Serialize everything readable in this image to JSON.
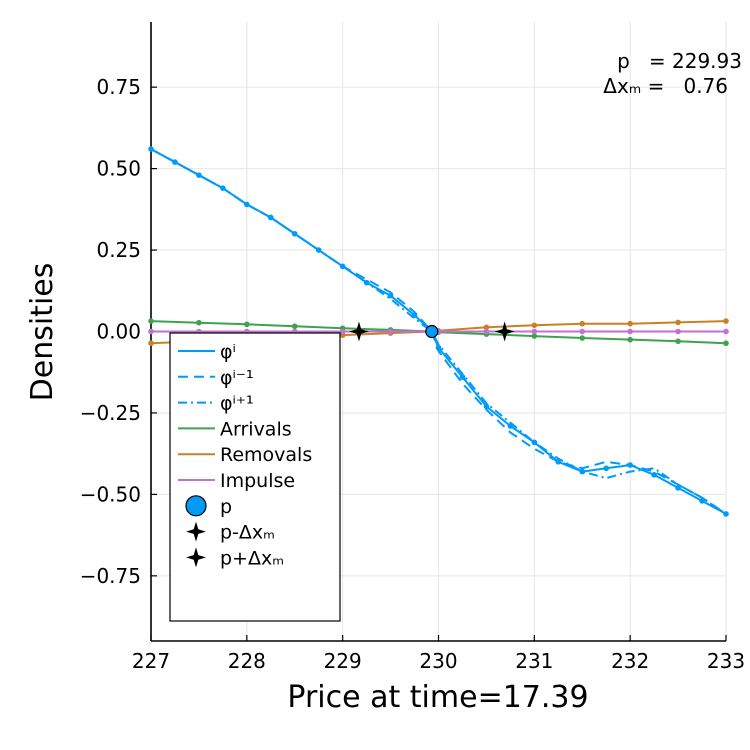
{
  "chart_data": {
    "type": "line",
    "xlabel": "Price at time=17.39",
    "ylabel": "Densities",
    "xlim": [
      227,
      233
    ],
    "ylim": [
      -0.95,
      0.95
    ],
    "xticks": [
      227,
      228,
      229,
      230,
      231,
      232,
      233
    ],
    "yticks": [
      0.75,
      0.5,
      0.25,
      0.0,
      -0.25,
      -0.5,
      -0.75
    ],
    "ytick_labels": [
      "0.75",
      "0.50",
      "0.25",
      "0.00",
      "−0.25",
      "−0.50",
      "−0.75"
    ],
    "grid": true,
    "legend_position": "bottom-left",
    "annotation": {
      "line1": "p   = 229.93",
      "line2": "Δxₘ =   0.76"
    },
    "colors": {
      "phi": "#009af9",
      "arrivals": "#3da44d",
      "removals": "#c68225",
      "impulse": "#c271d2",
      "markers": "#000000"
    },
    "series": [
      {
        "name": "φⁱ",
        "style": "solid",
        "color": "#009af9",
        "marker": "dot",
        "x": [
          227.0,
          227.25,
          227.5,
          227.75,
          228.0,
          228.25,
          228.5,
          228.75,
          229.0,
          229.25,
          229.5,
          229.75,
          229.93,
          230.0,
          230.25,
          230.5,
          230.75,
          231.0,
          231.25,
          231.5,
          231.75,
          232.0,
          232.25,
          232.5,
          232.75,
          233.0
        ],
        "y": [
          0.56,
          0.52,
          0.48,
          0.44,
          0.39,
          0.35,
          0.3,
          0.25,
          0.2,
          0.15,
          0.11,
          0.05,
          0.0,
          -0.05,
          -0.14,
          -0.23,
          -0.29,
          -0.34,
          -0.4,
          -0.43,
          -0.42,
          -0.41,
          -0.44,
          -0.48,
          -0.52,
          -0.56
        ]
      },
      {
        "name": "φⁱ⁻¹",
        "style": "dash",
        "color": "#009af9",
        "marker": "none",
        "x": [
          227.0,
          227.25,
          227.5,
          227.75,
          228.0,
          228.25,
          228.5,
          228.75,
          229.0,
          229.25,
          229.5,
          229.75,
          229.93,
          230.0,
          230.25,
          230.5,
          230.75,
          231.0,
          231.25,
          231.5,
          231.75,
          232.0,
          232.25,
          232.5,
          232.75,
          233.0
        ],
        "y": [
          0.56,
          0.52,
          0.48,
          0.44,
          0.39,
          0.35,
          0.3,
          0.25,
          0.2,
          0.16,
          0.12,
          0.06,
          0.0,
          -0.06,
          -0.16,
          -0.24,
          -0.31,
          -0.36,
          -0.4,
          -0.42,
          -0.4,
          -0.41,
          -0.43,
          -0.47,
          -0.51,
          -0.56
        ]
      },
      {
        "name": "φⁱ⁺¹",
        "style": "dashdot",
        "color": "#009af9",
        "marker": "none",
        "x": [
          227.0,
          227.25,
          227.5,
          227.75,
          228.0,
          228.25,
          228.5,
          228.75,
          229.0,
          229.25,
          229.5,
          229.75,
          229.93,
          230.0,
          230.25,
          230.5,
          230.75,
          231.0,
          231.25,
          231.5,
          231.75,
          232.0,
          232.25,
          232.5,
          232.75,
          233.0
        ],
        "y": [
          0.56,
          0.52,
          0.48,
          0.44,
          0.39,
          0.35,
          0.3,
          0.25,
          0.2,
          0.15,
          0.1,
          0.04,
          0.0,
          -0.04,
          -0.13,
          -0.22,
          -0.28,
          -0.34,
          -0.39,
          -0.43,
          -0.45,
          -0.43,
          -0.42,
          -0.47,
          -0.51,
          -0.56
        ]
      },
      {
        "name": "Arrivals",
        "style": "solid",
        "color": "#3da44d",
        "marker": "dot",
        "x": [
          227.0,
          227.5,
          228.0,
          228.5,
          229.0,
          229.5,
          229.93,
          230.0,
          230.5,
          231.0,
          231.5,
          232.0,
          232.5,
          233.0
        ],
        "y": [
          0.032,
          0.027,
          0.022,
          0.016,
          0.01,
          0.005,
          0.0,
          -0.002,
          -0.008,
          -0.014,
          -0.02,
          -0.025,
          -0.03,
          -0.036
        ]
      },
      {
        "name": "Removals",
        "style": "solid",
        "color": "#c68225",
        "marker": "dot",
        "x": [
          227.0,
          227.5,
          228.0,
          228.5,
          229.0,
          229.5,
          229.93,
          230.0,
          230.5,
          231.0,
          231.5,
          232.0,
          232.5,
          233.0
        ],
        "y": [
          -0.036,
          -0.03,
          -0.024,
          -0.017,
          -0.011,
          -0.005,
          0.0,
          0.002,
          0.013,
          0.019,
          0.024,
          0.024,
          0.028,
          0.032
        ]
      },
      {
        "name": "Impulse",
        "style": "solid",
        "color": "#c271d2",
        "marker": "dot",
        "x": [
          227.0,
          227.5,
          228.0,
          228.5,
          229.0,
          229.5,
          229.93,
          230.0,
          230.5,
          231.0,
          231.5,
          232.0,
          232.5,
          233.0
        ],
        "y": [
          0.0,
          0.0,
          0.0,
          0.0,
          0.0,
          0.0,
          0.0,
          0.0,
          0.0,
          0.0,
          0.0,
          0.0,
          0.0,
          0.0
        ]
      }
    ],
    "points": [
      {
        "name": "p",
        "x": 229.93,
        "y": 0.0,
        "marker": "circle",
        "color": "#009af9"
      },
      {
        "name": "p-Δxₘ",
        "x": 229.17,
        "y": 0.0,
        "marker": "star4",
        "color": "#000000"
      },
      {
        "name": "p+Δxₘ",
        "x": 230.69,
        "y": 0.0,
        "marker": "star4",
        "color": "#000000"
      }
    ]
  }
}
